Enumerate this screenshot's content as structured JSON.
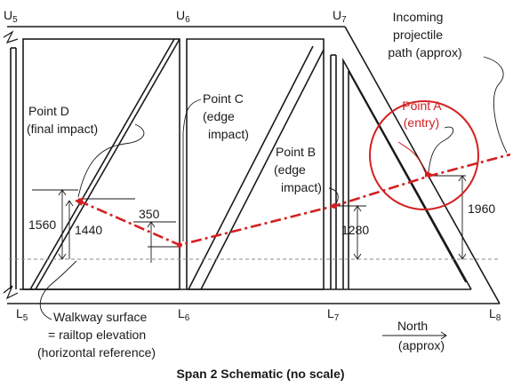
{
  "nodes": {
    "u5": {
      "main": "U",
      "sub": "5"
    },
    "u6": {
      "main": "U",
      "sub": "6"
    },
    "u7": {
      "main": "U",
      "sub": "7"
    },
    "l5": {
      "main": "L",
      "sub": "5"
    },
    "l6": {
      "main": "L",
      "sub": "6"
    },
    "l7": {
      "main": "L",
      "sub": "7"
    },
    "l8": {
      "main": "L",
      "sub": "8"
    }
  },
  "callouts": {
    "incoming": [
      "Incoming",
      "projectile",
      "path (approx)"
    ],
    "point_a": [
      "Point A",
      "(entry)"
    ],
    "point_b": [
      "Point B",
      "(edge",
      "impact)"
    ],
    "point_c": [
      "Point C",
      "(edge",
      "impact)"
    ],
    "point_d": [
      "Point D",
      "(final impact)"
    ],
    "walkway": [
      "Walkway surface",
      "= railtop elevation",
      "(horizontal reference)"
    ],
    "north": [
      "North",
      "(approx)"
    ]
  },
  "dimensions": {
    "d1560": "1560",
    "d1440": "1440",
    "d350": "350",
    "d1280": "1280",
    "d1960": "1960"
  },
  "caption": "Span 2 Schematic (no scale)",
  "colors": {
    "path": "#d42020",
    "structure": "#1a1a1a",
    "reference": "#888888"
  }
}
